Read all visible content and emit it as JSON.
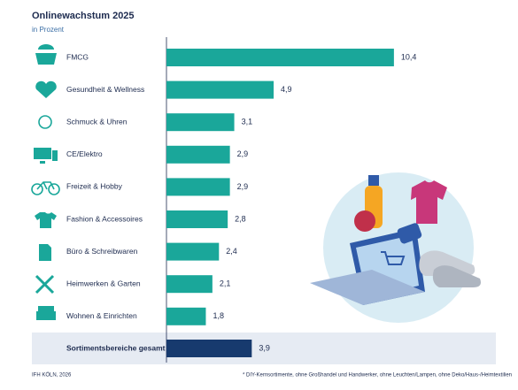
{
  "chart_data": {
    "type": "bar",
    "title": "Onlinewachstum 2025",
    "subtitle": "in Prozent",
    "categories": [
      "FMCG",
      "Gesundheit & Wellness",
      "Schmuck & Uhren",
      "CE/Elektro",
      "Freizeit & Hobby",
      "Fashion & Accessoires",
      "Büro & Schreibwaren",
      "Heimwerken & Garten",
      "Wohnen & Einrichten"
    ],
    "values": [
      10.4,
      4.9,
      3.1,
      2.9,
      2.9,
      2.8,
      2.4,
      2.1,
      1.8
    ],
    "value_labels": [
      "10,4",
      "4,9",
      "3,1",
      "2,9",
      "2,9",
      "2,8",
      "2,4",
      "2,1",
      "1,8"
    ],
    "color": "#1aa79a",
    "total": {
      "category": "Sortimentsbereiche gesamt",
      "value": 3.9,
      "value_label": "3,9",
      "color": "#173a6e"
    },
    "source": "IFH KÖLN, 2026",
    "footnote": "* DIY-Kernsortimente, ohne Großhandel und Handwerker, ohne Leuchten/Lampen, ohne Deko/Haus-/Heimtextilien"
  }
}
